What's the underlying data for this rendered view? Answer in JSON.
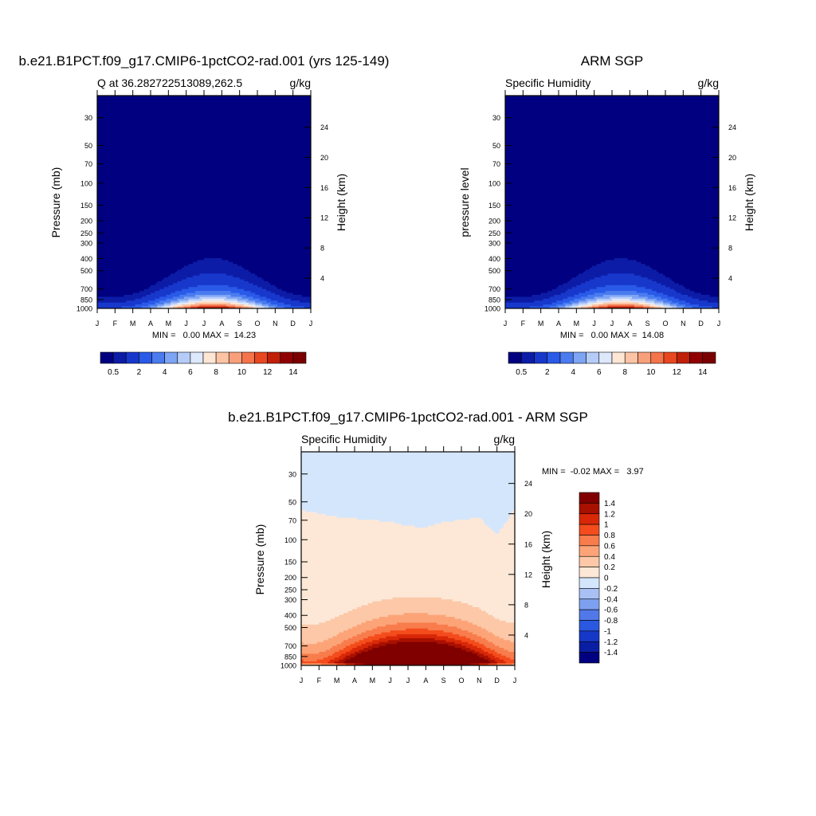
{
  "page": {
    "background": "#ffffff"
  },
  "chart_data": [
    {
      "type": "heatmap",
      "id": "model",
      "title": "b.e21.B1PCT.f09_g17.CMIP6-1pctCO2-rad.001 (yrs 125-149)",
      "left_label": "Q at 36.282722513089,262.5",
      "right_label": "g/kg",
      "ylabel": "Pressure (mb)",
      "ylabel_right": "Height (km)",
      "x_ticks": [
        "J",
        "F",
        "M",
        "A",
        "M",
        "J",
        "J",
        "A",
        "S",
        "O",
        "N",
        "D",
        "J"
      ],
      "y_ticks": [
        "30",
        "50",
        "70",
        "100",
        "150",
        "200",
        "250",
        "300",
        "400",
        "500",
        "700",
        "850",
        "1000"
      ],
      "y_tick_values": [
        30,
        50,
        70,
        100,
        150,
        200,
        250,
        300,
        400,
        500,
        700,
        850,
        1000
      ],
      "ylim": [
        1000,
        20
      ],
      "y_scale": "log",
      "height_ticks": [
        "24",
        "20",
        "16",
        "12",
        "8",
        "4"
      ],
      "height_tick_values": [
        24,
        20,
        16,
        12,
        8,
        4
      ],
      "stats": "MIN =   0.00 MAX =  14.23",
      "peak_month": 6.5,
      "peak_value": 14.23,
      "levels": [
        0.5,
        1,
        2,
        3,
        4,
        5,
        6,
        7,
        8,
        9,
        10,
        11,
        12,
        13,
        14
      ],
      "colorbar_labels": [
        "0.5",
        "2",
        "4",
        "6",
        "8",
        "10",
        "12",
        "14"
      ],
      "colorbar_label_levels": [
        0.5,
        2,
        4,
        6,
        8,
        10,
        12,
        14
      ],
      "colorbar_orientation": "horizontal"
    },
    {
      "type": "heatmap",
      "id": "obs",
      "title": "ARM SGP",
      "left_label": "Specific Humidity",
      "right_label": "g/kg",
      "ylabel": "pressure level",
      "ylabel_right": "Height (km)",
      "x_ticks": [
        "J",
        "F",
        "M",
        "A",
        "M",
        "J",
        "J",
        "A",
        "S",
        "O",
        "N",
        "D",
        "J"
      ],
      "y_ticks": [
        "30",
        "50",
        "70",
        "100",
        "150",
        "200",
        "250",
        "300",
        "400",
        "500",
        "700",
        "850",
        "1000"
      ],
      "y_tick_values": [
        30,
        50,
        70,
        100,
        150,
        200,
        250,
        300,
        400,
        500,
        700,
        850,
        1000
      ],
      "ylim": [
        1000,
        20
      ],
      "y_scale": "log",
      "height_ticks": [
        "24",
        "20",
        "16",
        "12",
        "8",
        "4"
      ],
      "height_tick_values": [
        24,
        20,
        16,
        12,
        8,
        4
      ],
      "stats": "MIN =   0.00 MAX =  14.08",
      "peak_month": 6.5,
      "peak_value": 14.08,
      "levels": [
        0.5,
        1,
        2,
        3,
        4,
        5,
        6,
        7,
        8,
        9,
        10,
        11,
        12,
        13,
        14
      ],
      "colorbar_labels": [
        "0.5",
        "2",
        "4",
        "6",
        "8",
        "10",
        "12",
        "14"
      ],
      "colorbar_label_levels": [
        0.5,
        2,
        4,
        6,
        8,
        10,
        12,
        14
      ],
      "colorbar_orientation": "horizontal"
    },
    {
      "type": "heatmap",
      "id": "diff",
      "title": "b.e21.B1PCT.f09_g17.CMIP6-1pctCO2-rad.001 - ARM SGP",
      "left_label": "Specific Humidity",
      "right_label": "g/kg",
      "ylabel": "Pressure (mb)",
      "ylabel_right": "Height (km)",
      "x_ticks": [
        "J",
        "F",
        "M",
        "A",
        "M",
        "J",
        "J",
        "A",
        "S",
        "O",
        "N",
        "D",
        "J"
      ],
      "y_ticks": [
        "30",
        "50",
        "70",
        "100",
        "150",
        "200",
        "250",
        "300",
        "400",
        "500",
        "700",
        "850",
        "1000"
      ],
      "y_tick_values": [
        30,
        50,
        70,
        100,
        150,
        200,
        250,
        300,
        400,
        500,
        700,
        850,
        1000
      ],
      "ylim": [
        1000,
        20
      ],
      "y_scale": "log",
      "height_ticks": [
        "24",
        "20",
        "16",
        "12",
        "8",
        "4"
      ],
      "height_tick_values": [
        24,
        20,
        16,
        12,
        8,
        4
      ],
      "stats": "MIN =  -0.02 MAX =   3.97",
      "colorbar_labels": [
        "1.4",
        "1.2",
        "1",
        "0.8",
        "0.6",
        "0.4",
        "0.2",
        "0",
        "-0.2",
        "-0.4",
        "-0.6",
        "-0.8",
        "-1",
        "-1.2",
        "-1.4"
      ],
      "colorbar_orientation": "vertical",
      "zero_contour_pressure_by_month": [
        58,
        62,
        66,
        68,
        70,
        72,
        78,
        80,
        72,
        70,
        66,
        90,
        56
      ]
    }
  ],
  "palette": {
    "humidity": [
      "#000080",
      "#0c1ca6",
      "#1838cc",
      "#2a5ae8",
      "#4a7cf0",
      "#7ea4f4",
      "#b6ccf8",
      "#dde8fc",
      "#fde6d4",
      "#fcc4a4",
      "#f8a07c",
      "#f4744c",
      "#e84820",
      "#c02008",
      "#900000",
      "#7a0000"
    ],
    "difference": [
      "#000080",
      "#0a1ea4",
      "#1638c8",
      "#2a58e0",
      "#5078e8",
      "#7ea0f0",
      "#a8c0f4",
      "#d4e6fc",
      "#fde8d8",
      "#fcc8a8",
      "#fca478",
      "#f87c4c",
      "#f44c1c",
      "#d82808",
      "#a81000",
      "#800000"
    ]
  }
}
